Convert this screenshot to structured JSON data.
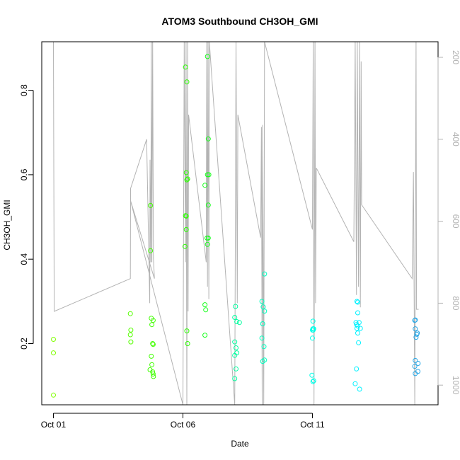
{
  "chart_data": {
    "type": "scatter",
    "title": "ATOM3 Southbound CH3OH_GMI",
    "xlabel": "Date",
    "ylabel": "CH3OH_GMI",
    "x_unit": "days in October",
    "xlim": [
      0.55,
      15.85
    ],
    "ylim": [
      0.055,
      0.915
    ],
    "x_ticks": [
      {
        "value": 1,
        "label": "Oct 01"
      },
      {
        "value": 6,
        "label": "Oct 06"
      },
      {
        "value": 11,
        "label": "Oct 11"
      }
    ],
    "y_ticks": [
      {
        "value": 0.2,
        "label": "0.2"
      },
      {
        "value": 0.4,
        "label": "0.4"
      },
      {
        "value": 0.6,
        "label": "0.6"
      },
      {
        "value": 0.8,
        "label": "0.8"
      }
    ],
    "right_axis": {
      "ylim": [
        1048,
        162
      ],
      "ticks": [
        {
          "value": 200,
          "label": "200"
        },
        {
          "value": 400,
          "label": "400"
        },
        {
          "value": 600,
          "label": "600"
        },
        {
          "value": 800,
          "label": "800"
        },
        {
          "value": 1000,
          "label": "1000"
        }
      ],
      "color": "#b3b3b3"
    },
    "points": [
      {
        "x": 1.0,
        "y": 0.21,
        "color": "#80ff00"
      },
      {
        "x": 1.0,
        "y": 0.178,
        "color": "#80ff00"
      },
      {
        "x": 1.0,
        "y": 0.078,
        "color": "#80ff00"
      },
      {
        "x": 3.97,
        "y": 0.271,
        "color": "#55ff00"
      },
      {
        "x": 3.99,
        "y": 0.232,
        "color": "#55ff00"
      },
      {
        "x": 3.97,
        "y": 0.221,
        "color": "#55ff00"
      },
      {
        "x": 3.99,
        "y": 0.204,
        "color": "#55ff00"
      },
      {
        "x": 4.75,
        "y": 0.527,
        "color": "#40ff00"
      },
      {
        "x": 4.75,
        "y": 0.42,
        "color": "#40ff00"
      },
      {
        "x": 4.78,
        "y": 0.26,
        "color": "#40ff00"
      },
      {
        "x": 4.85,
        "y": 0.255,
        "color": "#40ff00"
      },
      {
        "x": 4.8,
        "y": 0.245,
        "color": "#40ff00"
      },
      {
        "x": 4.83,
        "y": 0.2,
        "color": "#40ff00"
      },
      {
        "x": 4.85,
        "y": 0.198,
        "color": "#40ff00"
      },
      {
        "x": 4.78,
        "y": 0.17,
        "color": "#40ff00"
      },
      {
        "x": 4.8,
        "y": 0.15,
        "color": "#40ff00"
      },
      {
        "x": 4.73,
        "y": 0.138,
        "color": "#40ff00"
      },
      {
        "x": 4.83,
        "y": 0.133,
        "color": "#40ff00"
      },
      {
        "x": 4.85,
        "y": 0.128,
        "color": "#40ff00"
      },
      {
        "x": 4.86,
        "y": 0.122,
        "color": "#40ff00"
      },
      {
        "x": 6.1,
        "y": 0.855,
        "color": "#2bff00"
      },
      {
        "x": 6.15,
        "y": 0.82,
        "color": "#2bff00"
      },
      {
        "x": 6.13,
        "y": 0.605,
        "color": "#2bff00"
      },
      {
        "x": 6.18,
        "y": 0.59,
        "color": "#2bff00"
      },
      {
        "x": 6.15,
        "y": 0.588,
        "color": "#2bff00"
      },
      {
        "x": 6.1,
        "y": 0.503,
        "color": "#2bff00"
      },
      {
        "x": 6.13,
        "y": 0.502,
        "color": "#2bff00"
      },
      {
        "x": 6.13,
        "y": 0.47,
        "color": "#2bff00"
      },
      {
        "x": 6.08,
        "y": 0.43,
        "color": "#2bff00"
      },
      {
        "x": 6.15,
        "y": 0.23,
        "color": "#2bff00"
      },
      {
        "x": 6.18,
        "y": 0.2,
        "color": "#2bff00"
      },
      {
        "x": 6.95,
        "y": 0.88,
        "color": "#15ff1a"
      },
      {
        "x": 6.98,
        "y": 0.685,
        "color": "#15ff1a"
      },
      {
        "x": 6.95,
        "y": 0.6,
        "color": "#15ff1a"
      },
      {
        "x": 7.0,
        "y": 0.6,
        "color": "#15ff1a"
      },
      {
        "x": 6.85,
        "y": 0.575,
        "color": "#15ff1a"
      },
      {
        "x": 6.98,
        "y": 0.528,
        "color": "#15ff1a"
      },
      {
        "x": 6.93,
        "y": 0.45,
        "color": "#15ff1a"
      },
      {
        "x": 6.98,
        "y": 0.45,
        "color": "#15ff1a"
      },
      {
        "x": 6.95,
        "y": 0.435,
        "color": "#15ff1a"
      },
      {
        "x": 6.85,
        "y": 0.292,
        "color": "#15ff1a"
      },
      {
        "x": 6.88,
        "y": 0.28,
        "color": "#15ff1a"
      },
      {
        "x": 6.85,
        "y": 0.22,
        "color": "#15ff1a"
      },
      {
        "x": 8.03,
        "y": 0.288,
        "color": "#00ff9f"
      },
      {
        "x": 8.0,
        "y": 0.262,
        "color": "#00ff9f"
      },
      {
        "x": 8.08,
        "y": 0.252,
        "color": "#00ff9f"
      },
      {
        "x": 8.18,
        "y": 0.25,
        "color": "#00ff9f"
      },
      {
        "x": 8.0,
        "y": 0.204,
        "color": "#00ff9f"
      },
      {
        "x": 8.05,
        "y": 0.19,
        "color": "#00ff9f"
      },
      {
        "x": 8.08,
        "y": 0.178,
        "color": "#00ff9f"
      },
      {
        "x": 8.0,
        "y": 0.172,
        "color": "#00ff9f"
      },
      {
        "x": 8.05,
        "y": 0.14,
        "color": "#00ff9f"
      },
      {
        "x": 8.0,
        "y": 0.117,
        "color": "#00ff9f"
      },
      {
        "x": 9.05,
        "y": 0.3,
        "color": "#00ffbf"
      },
      {
        "x": 9.1,
        "y": 0.287,
        "color": "#00ffbf"
      },
      {
        "x": 9.15,
        "y": 0.277,
        "color": "#00ffbf"
      },
      {
        "x": 9.08,
        "y": 0.247,
        "color": "#00ffbf"
      },
      {
        "x": 9.05,
        "y": 0.213,
        "color": "#00ffbf"
      },
      {
        "x": 9.13,
        "y": 0.193,
        "color": "#00ffbf"
      },
      {
        "x": 9.15,
        "y": 0.161,
        "color": "#00ffbf"
      },
      {
        "x": 9.08,
        "y": 0.158,
        "color": "#00ffbf"
      },
      {
        "x": 9.15,
        "y": 0.365,
        "color": "#00ffbf"
      },
      {
        "x": 11.02,
        "y": 0.253,
        "color": "#00ffe8"
      },
      {
        "x": 11.02,
        "y": 0.235,
        "color": "#00ffe8"
      },
      {
        "x": 11.05,
        "y": 0.235,
        "color": "#00ffe8"
      },
      {
        "x": 11.03,
        "y": 0.232,
        "color": "#00ffe8"
      },
      {
        "x": 11.0,
        "y": 0.232,
        "color": "#00ffe8"
      },
      {
        "x": 11.0,
        "y": 0.213,
        "color": "#00ffe8"
      },
      {
        "x": 10.98,
        "y": 0.125,
        "color": "#00ffe8"
      },
      {
        "x": 11.05,
        "y": 0.112,
        "color": "#00ffe8"
      },
      {
        "x": 11.02,
        "y": 0.11,
        "color": "#00ffe8"
      },
      {
        "x": 12.72,
        "y": 0.3,
        "color": "#00f2ff"
      },
      {
        "x": 12.75,
        "y": 0.298,
        "color": "#00f2ff"
      },
      {
        "x": 12.75,
        "y": 0.273,
        "color": "#00f2ff"
      },
      {
        "x": 12.68,
        "y": 0.25,
        "color": "#00f2ff"
      },
      {
        "x": 12.8,
        "y": 0.25,
        "color": "#00f2ff"
      },
      {
        "x": 12.7,
        "y": 0.245,
        "color": "#00f2ff"
      },
      {
        "x": 12.75,
        "y": 0.242,
        "color": "#00f2ff"
      },
      {
        "x": 12.85,
        "y": 0.236,
        "color": "#00f2ff"
      },
      {
        "x": 12.72,
        "y": 0.236,
        "color": "#00f2ff"
      },
      {
        "x": 12.75,
        "y": 0.225,
        "color": "#00f2ff"
      },
      {
        "x": 12.78,
        "y": 0.202,
        "color": "#00f2ff"
      },
      {
        "x": 12.7,
        "y": 0.14,
        "color": "#00f2ff"
      },
      {
        "x": 12.65,
        "y": 0.105,
        "color": "#00f2ff"
      },
      {
        "x": 12.82,
        "y": 0.092,
        "color": "#00f2ff"
      },
      {
        "x": 14.97,
        "y": 0.256,
        "color": "#2aa8e6"
      },
      {
        "x": 14.95,
        "y": 0.255,
        "color": "#2aa8e6"
      },
      {
        "x": 14.97,
        "y": 0.235,
        "color": "#2aa8e6"
      },
      {
        "x": 15.05,
        "y": 0.225,
        "color": "#2aa8e6"
      },
      {
        "x": 15.03,
        "y": 0.222,
        "color": "#2aa8e6"
      },
      {
        "x": 15.0,
        "y": 0.215,
        "color": "#2aa8e6"
      },
      {
        "x": 14.97,
        "y": 0.16,
        "color": "#2aa8e6"
      },
      {
        "x": 15.08,
        "y": 0.153,
        "color": "#2aa8e6"
      },
      {
        "x": 14.95,
        "y": 0.146,
        "color": "#2aa8e6"
      },
      {
        "x": 15.07,
        "y": 0.134,
        "color": "#2aa8e6"
      },
      {
        "x": 14.97,
        "y": 0.129,
        "color": "#2aa8e6"
      }
    ],
    "pressure_line": {
      "color": "#b3b3b3",
      "points": [
        [
          1.0,
          160
        ],
        [
          1.03,
          820
        ],
        [
          3.97,
          740
        ],
        [
          3.98,
          520
        ],
        [
          4.6,
          400
        ],
        [
          4.72,
          800
        ],
        [
          4.73,
          450
        ],
        [
          4.76,
          700
        ],
        [
          4.78,
          162
        ],
        [
          4.8,
          700
        ],
        [
          4.83,
          162
        ],
        [
          4.86,
          690
        ],
        [
          4.9,
          740
        ],
        [
          3.98,
          550
        ],
        [
          6.0,
          1048
        ],
        [
          6.05,
          162
        ],
        [
          6.1,
          700
        ],
        [
          6.12,
          162
        ],
        [
          6.15,
          1048
        ],
        [
          6.18,
          162
        ],
        [
          6.2,
          820
        ],
        [
          6.22,
          340
        ],
        [
          6.9,
          700
        ],
        [
          6.92,
          162
        ],
        [
          6.95,
          760
        ],
        [
          6.97,
          162
        ],
        [
          7.0,
          790
        ],
        [
          7.02,
          162
        ],
        [
          8.0,
          1048
        ],
        [
          8.05,
          162
        ],
        [
          8.1,
          800
        ],
        [
          8.12,
          340
        ],
        [
          9.0,
          640
        ],
        [
          9.03,
          370
        ],
        [
          9.06,
          1048
        ],
        [
          9.08,
          365
        ],
        [
          9.12,
          1048
        ],
        [
          9.15,
          162
        ],
        [
          11.0,
          620
        ],
        [
          11.03,
          162
        ],
        [
          11.06,
          1048
        ],
        [
          11.1,
          162
        ],
        [
          11.12,
          800
        ],
        [
          11.15,
          470
        ],
        [
          12.6,
          650
        ],
        [
          12.65,
          162
        ],
        [
          12.7,
          780
        ],
        [
          12.73,
          162
        ],
        [
          12.78,
          760
        ],
        [
          12.82,
          162
        ],
        [
          12.85,
          810
        ],
        [
          12.88,
          210
        ],
        [
          12.9,
          560
        ],
        [
          14.85,
          740
        ],
        [
          14.9,
          480
        ],
        [
          14.95,
          1048
        ],
        [
          15.0,
          162
        ],
        [
          15.02,
          815
        ],
        [
          15.1,
          815
        ]
      ]
    }
  }
}
